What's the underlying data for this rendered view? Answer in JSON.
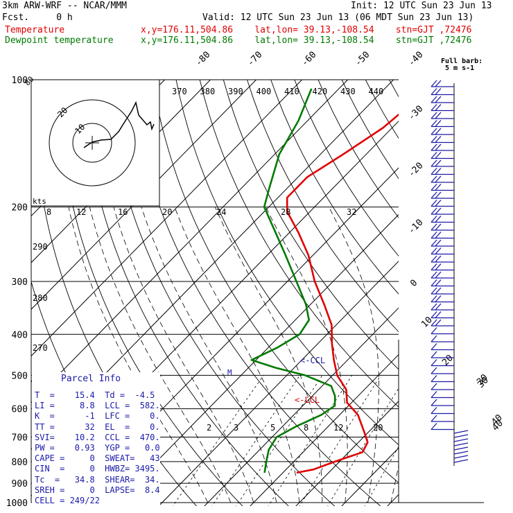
{
  "header": {
    "model": "3km ARW-WRF -- NCAR/MMM",
    "init": "Init: 12 UTC Sun 23 Jun 13",
    "fcst": "Fcst.     0 h",
    "valid": "Valid: 12 UTC Sun 23 Jun 13 (06 MDT Sun 23 Jun 13)",
    "temperature_label": "Temperature",
    "dewpoint_label": "Dewpoint temperature",
    "location": "x,y=176.11,504.86    lat,lon= 39.13,-108.54    stn=GJT ,72476"
  },
  "colors": {
    "temperature": "#e00000",
    "dewpoint": "#007a00",
    "isotherm": "#000000",
    "dry_adiabat": "#000000",
    "moist_adiabat": "#000000",
    "mixing_ratio": "#000000",
    "parcel_text": "#1a1aa8",
    "barbs": "#1a1aa8",
    "lcl": "#e00000"
  },
  "chart_data": {
    "type": "line",
    "yscale": "log-pressure",
    "ylim": [
      1000,
      100
    ],
    "pressure_ticks": [
      100,
      200,
      300,
      400,
      500,
      600,
      700,
      800,
      900,
      1000
    ],
    "isotherm_labels": [
      "-80",
      "-70",
      "-60",
      "-50",
      "-40",
      "-30",
      "-20",
      "-10",
      "0",
      "10",
      "20",
      "30",
      "40"
    ],
    "theta_labels": [
      "370",
      "380",
      "390",
      "400",
      "410",
      "420",
      "430",
      "440"
    ],
    "theta_inner_labels": [
      "290",
      "280",
      "270"
    ],
    "hodo_speed_labels": [
      "8",
      "12",
      "16",
      "20",
      "24",
      "28",
      "32"
    ],
    "hodo_unit": "kts",
    "hodo_ring_labels": [
      "20",
      "10"
    ],
    "mixing_ratio_labels": [
      "2",
      "3",
      "5",
      "8",
      "12",
      "20"
    ],
    "right_scale_labels": [
      "30",
      "40"
    ],
    "wind_header": "Full barb:",
    "wind_sub": "5 m s-1",
    "series": [
      {
        "name": "Temperature",
        "points": [
          [
            850,
            3
          ],
          [
            835,
            6
          ],
          [
            800,
            9
          ],
          [
            760,
            13
          ],
          [
            720,
            12
          ],
          [
            680,
            9
          ],
          [
            620,
            4
          ],
          [
            580,
            -1
          ],
          [
            540,
            -4
          ],
          [
            500,
            -9
          ],
          [
            460,
            -13
          ],
          [
            420,
            -17
          ],
          [
            380,
            -21
          ],
          [
            340,
            -27
          ],
          [
            300,
            -34
          ],
          [
            260,
            -41
          ],
          [
            230,
            -48
          ],
          [
            205,
            -55
          ],
          [
            190,
            -58
          ],
          [
            170,
            -58
          ],
          [
            150,
            -55
          ],
          [
            130,
            -52
          ],
          [
            115,
            -51
          ],
          [
            105,
            -50
          ]
        ]
      },
      {
        "name": "Dewpoint temperature",
        "points": [
          [
            850,
            -4
          ],
          [
            800,
            -6
          ],
          [
            750,
            -8
          ],
          [
            700,
            -9
          ],
          [
            660,
            -7
          ],
          [
            620,
            -4
          ],
          [
            590,
            -3
          ],
          [
            560,
            -5
          ],
          [
            530,
            -8
          ],
          [
            500,
            -16
          ],
          [
            480,
            -24
          ],
          [
            460,
            -31
          ],
          [
            430,
            -28
          ],
          [
            400,
            -26
          ],
          [
            370,
            -27
          ],
          [
            340,
            -31
          ],
          [
            300,
            -38
          ],
          [
            260,
            -46
          ],
          [
            230,
            -53
          ],
          [
            200,
            -61
          ],
          [
            180,
            -64
          ],
          [
            150,
            -69
          ],
          [
            125,
            -72
          ],
          [
            105,
            -76
          ]
        ]
      }
    ],
    "annotations": [
      "<-CCL",
      "<-LCL",
      "M"
    ]
  },
  "parcel": {
    "title": "Parcel Info",
    "rows": [
      "T  =    15.4  Td =  -4.5",
      "LI =     8.8  LCL =  582.",
      "K  =      -1  LFC =    0.",
      "TT =      32  EL  =    0.",
      "SVI=    10.2  CCL =  470.",
      "PW =    0.93  YGP =   0.0",
      "CAPE =     0  SWEAT=   43",
      "CIN  =     0  HWBZ= 3495.",
      "Tc  =   34.8  SHEAR=  34.",
      "SREH =     0  LAPSE=  8.4",
      "CELL = 249/22"
    ]
  }
}
